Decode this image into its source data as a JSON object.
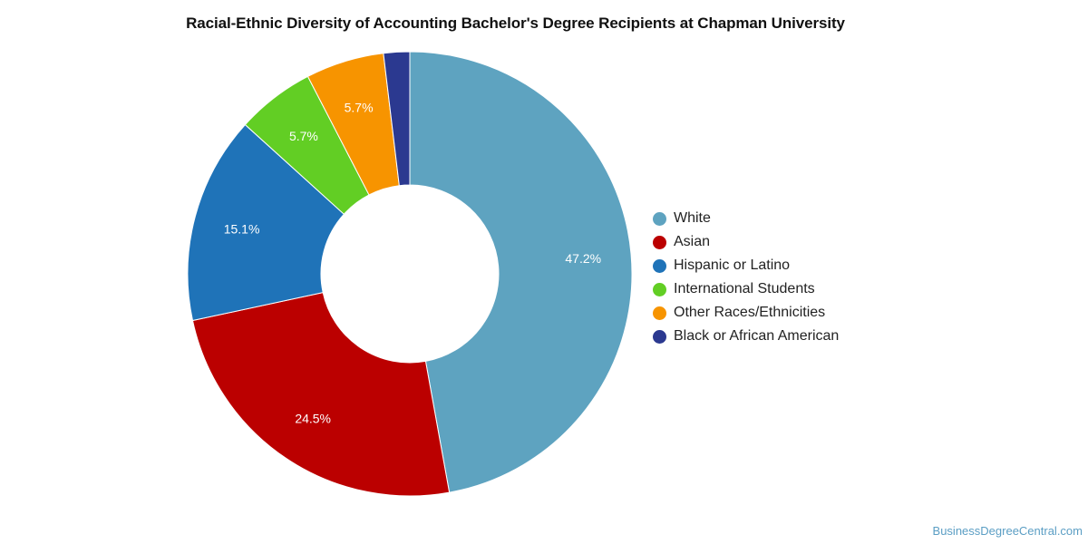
{
  "chart_data": {
    "type": "pie",
    "title": "Racial-Ethnic Diversity of Accounting Bachelor's Degree Recipients at Chapman University",
    "legend_position": "right",
    "slices": [
      {
        "name": "White",
        "value": 47.2,
        "label": "47.2%",
        "color": "#5ea3c0"
      },
      {
        "name": "Asian",
        "value": 24.5,
        "label": "24.5%",
        "color": "#bb0000"
      },
      {
        "name": "Hispanic or Latino",
        "value": 15.1,
        "label": "15.1%",
        "color": "#1f73b8"
      },
      {
        "name": "International Students",
        "value": 5.7,
        "label": "5.7%",
        "color": "#62ce24"
      },
      {
        "name": "Other Races/Ethnicities",
        "value": 5.7,
        "label": "5.7%",
        "color": "#f79400"
      },
      {
        "name": "Black or African American",
        "value": 1.9,
        "label": "",
        "color": "#2b3990"
      }
    ]
  },
  "credit": "BusinessDegreeCentral.com"
}
